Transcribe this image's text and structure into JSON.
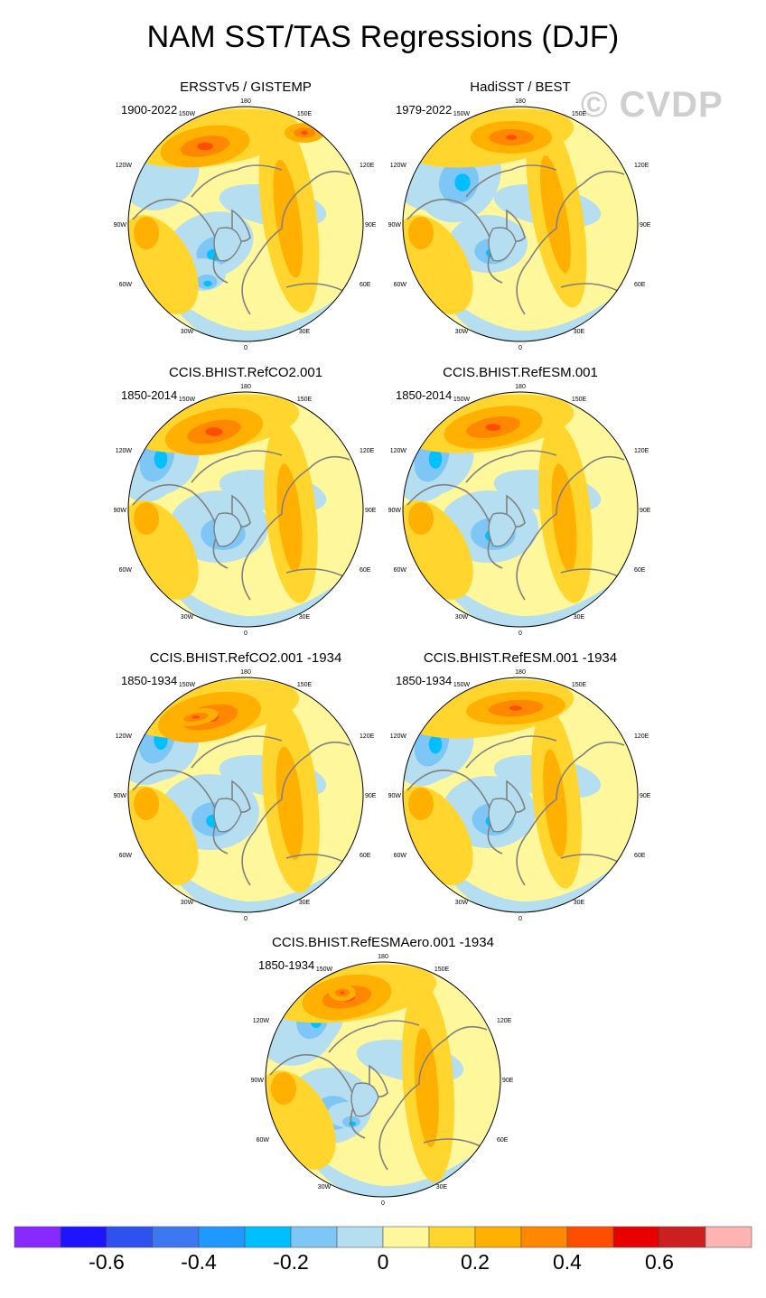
{
  "title": "NAM SST/TAS Regressions (DJF)",
  "watermark": "© CVDP",
  "colors": {
    "neg": [
      "#8729ff",
      "#1f14ff",
      "#2e52f0",
      "#3d78f2",
      "#1f99ff",
      "#00bfff",
      "#7dc6f5",
      "#b5def0"
    ],
    "pos": [
      "#fff79c",
      "#ffd52e",
      "#ffb000",
      "#ff8800",
      "#ff4e00",
      "#e80000",
      "#cc1f1f",
      "#ffb3b3"
    ],
    "land": "#ffffff",
    "coast": "#808080"
  },
  "map_labels": {
    "top": "180",
    "upper_left": "150W",
    "upper_right": "150E",
    "left_upper": "120W",
    "right_upper": "120E",
    "left": "90W",
    "right": "90E",
    "left_lower": "60W",
    "right_lower": "60E",
    "lower_left": "30W",
    "lower_right": "30E",
    "bottom": "0"
  },
  "panels": [
    {
      "title": "ERSSTv5 / GISTEMP",
      "years": "1900-2022"
    },
    {
      "title": "HadiSST / BEST",
      "years": "1979-2022"
    },
    {
      "title": "CCIS.BHIST.RefCO2.001",
      "years": "1850-2014"
    },
    {
      "title": "CCIS.BHIST.RefESM.001",
      "years": "1850-2014"
    },
    {
      "title": "CCIS.BHIST.RefCO2.001 -1934",
      "years": "1850-1934"
    },
    {
      "title": "CCIS.BHIST.RefESM.001 -1934",
      "years": "1850-1934"
    },
    {
      "title": "CCIS.BHIST.RefESMAero.001 -1934",
      "years": "1850-1934"
    }
  ],
  "chart_data": {
    "type": "heatmap",
    "title": "NAM SST/TAS Regressions (DJF)",
    "projection": "north polar stereographic",
    "colorbar": {
      "levels": [
        -0.7,
        -0.6,
        -0.5,
        -0.4,
        -0.3,
        -0.2,
        -0.1,
        0,
        0.1,
        0.2,
        0.3,
        0.4,
        0.5,
        0.6,
        0.7
      ],
      "tick_values": [
        -0.6,
        -0.4,
        -0.2,
        0,
        0.2,
        0.4,
        0.6
      ],
      "tick_labels": [
        "-0.6",
        "-0.4",
        "-0.2",
        "0",
        "0.2",
        "0.4",
        "0.6"
      ],
      "bins": 16
    },
    "panels": [
      {
        "name": "ERSSTv5 / GISTEMP",
        "period": "1900-2022"
      },
      {
        "name": "HadiSST / BEST",
        "period": "1979-2022"
      },
      {
        "name": "CCIS.BHIST.RefCO2.001",
        "period": "1850-2014"
      },
      {
        "name": "CCIS.BHIST.RefESM.001",
        "period": "1850-2014"
      },
      {
        "name": "CCIS.BHIST.RefCO2.001 -1934",
        "period": "1850-1934"
      },
      {
        "name": "CCIS.BHIST.RefESM.001 -1934",
        "period": "1850-1934"
      },
      {
        "name": "CCIS.BHIST.RefESMAero.001 -1934",
        "period": "1850-1934"
      }
    ]
  }
}
